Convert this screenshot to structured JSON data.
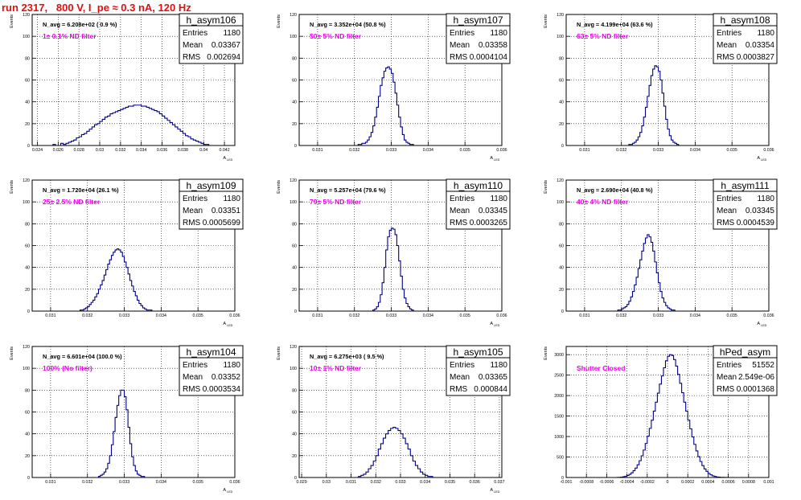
{
  "run_title": "run 2317,   800 V, I_pe ≈ 0.3 nA, 120 Hz",
  "colors": {
    "title": "#dd1010",
    "histogram": "#00008b",
    "filter_label": "#ee00ee",
    "text": "#000000"
  },
  "chart_data": [
    {
      "type": "histogram",
      "name": "h_asym106",
      "stats": {
        "entries_label": "Entries",
        "entries": "1180",
        "mean_label": "Mean",
        "mean": "0.03367",
        "rms_label": "RMS",
        "rms": "0.002694"
      },
      "annotation": "N_avg = 6.208e+02 ( 0.9 %)",
      "filter_label": "1± 0.1% ND filter",
      "xlabel": "A",
      "xlabel_sub": "LED",
      "ylabel": "Events",
      "xlim": [
        0.0235,
        0.043
      ],
      "ylim": [
        0,
        120
      ],
      "xticks": [
        0.024,
        0.026,
        0.028,
        0.03,
        0.032,
        0.034,
        0.036,
        0.038,
        0.04,
        0.042
      ],
      "xtick_labels": [
        "0.024",
        "0.026",
        "0.028",
        "0.03",
        "0.032",
        "0.034",
        "0.036",
        "0.038",
        "0.04",
        "0.042"
      ],
      "yticks": [
        0,
        20,
        40,
        60,
        80,
        100,
        120
      ],
      "grid": true,
      "bins": {
        "start": 0.0255,
        "width": 0.00025,
        "counts": [
          1,
          0,
          0,
          2,
          1,
          2,
          3,
          4,
          5,
          7,
          8,
          10,
          11,
          13,
          15,
          17,
          19,
          20,
          22,
          24,
          26,
          27,
          29,
          30,
          31,
          32,
          33,
          34,
          35,
          36,
          36,
          37,
          37,
          37,
          36,
          36,
          35,
          34,
          33,
          32,
          31,
          29,
          27,
          25,
          23,
          21,
          19,
          17,
          15,
          13,
          11,
          9,
          8,
          6,
          5,
          4,
          3,
          2,
          1,
          1,
          0,
          0,
          0,
          0,
          0
        ]
      }
    },
    {
      "type": "histogram",
      "name": "h_asym107",
      "stats": {
        "entries_label": "Entries",
        "entries": "1180",
        "mean_label": "Mean",
        "mean": "0.03358",
        "rms_label": "RMS",
        "rms": "0.0004104"
      },
      "annotation": "N_avg = 3.352e+04 (50.8 %)",
      "filter_label": "50± 5% ND filter",
      "xlabel": "A",
      "xlabel_sub": "LED",
      "ylabel": "Events",
      "xlim": [
        0.0305,
        0.036
      ],
      "ylim": [
        0,
        120
      ],
      "xticks": [
        0.031,
        0.032,
        0.033,
        0.034,
        0.035,
        0.036
      ],
      "xtick_labels": [
        "0.031",
        "0.032",
        "0.033",
        "0.034",
        "0.035",
        "0.036"
      ],
      "yticks": [
        0,
        20,
        40,
        60,
        80,
        100,
        120
      ],
      "grid": true,
      "bins": {
        "start": 0.0321,
        "width": 5e-05,
        "counts": [
          1,
          1,
          2,
          2,
          3,
          5,
          8,
          12,
          18,
          26,
          35,
          45,
          55,
          62,
          68,
          71,
          72,
          70,
          66,
          58,
          48,
          37,
          26,
          17,
          10,
          5,
          3,
          2,
          1,
          1
        ]
      }
    },
    {
      "type": "histogram",
      "name": "h_asym108",
      "stats": {
        "entries_label": "Entries",
        "entries": "1180",
        "mean_label": "Mean",
        "mean": "0.03354",
        "rms_label": "RMS",
        "rms": "0.0003827"
      },
      "annotation": "N_avg = 4.199e+04 (63.6 %)",
      "filter_label": "63± 5% ND filter",
      "xlabel": "A",
      "xlabel_sub": "LED",
      "ylabel": "Events",
      "xlim": [
        0.0305,
        0.036
      ],
      "ylim": [
        0,
        120
      ],
      "xticks": [
        0.031,
        0.032,
        0.033,
        0.034,
        0.035,
        0.036
      ],
      "xtick_labels": [
        "0.031",
        "0.032",
        "0.033",
        "0.034",
        "0.035",
        "0.036"
      ],
      "yticks": [
        0,
        20,
        40,
        60,
        80,
        100,
        120
      ],
      "grid": true,
      "bins": {
        "start": 0.0322,
        "width": 5e-05,
        "counts": [
          1,
          1,
          2,
          3,
          5,
          8,
          12,
          18,
          26,
          35,
          45,
          55,
          64,
          70,
          73,
          72,
          68,
          60,
          48,
          36,
          24,
          15,
          9,
          5,
          3,
          2,
          1
        ]
      }
    },
    {
      "type": "histogram",
      "name": "h_asym109",
      "stats": {
        "entries_label": "Entries",
        "entries": "1180",
        "mean_label": "Mean",
        "mean": "0.03351",
        "rms_label": "RMS",
        "rms": "0.0005699"
      },
      "annotation": "N_avg = 1.720e+04 (26.1 %)",
      "filter_label": "25± 2.5% ND filter",
      "xlabel": "A",
      "xlabel_sub": "LED",
      "ylabel": "Events",
      "xlim": [
        0.0305,
        0.036
      ],
      "ylim": [
        0,
        120
      ],
      "xticks": [
        0.031,
        0.032,
        0.033,
        0.034,
        0.035,
        0.036
      ],
      "xtick_labels": [
        "0.031",
        "0.032",
        "0.033",
        "0.034",
        "0.035",
        "0.036"
      ],
      "yticks": [
        0,
        20,
        40,
        60,
        80,
        100,
        120
      ],
      "grid": true,
      "bins": {
        "start": 0.0318,
        "width": 5e-05,
        "counts": [
          1,
          1,
          2,
          3,
          4,
          6,
          8,
          10,
          13,
          16,
          20,
          24,
          28,
          33,
          38,
          43,
          47,
          51,
          54,
          56,
          57,
          56,
          54,
          50,
          45,
          40,
          34,
          28,
          23,
          18,
          14,
          10,
          7,
          5,
          3,
          2,
          1,
          1,
          1
        ]
      }
    },
    {
      "type": "histogram",
      "name": "h_asym110",
      "stats": {
        "entries_label": "Entries",
        "entries": "1180",
        "mean_label": "Mean",
        "mean": "0.03345",
        "rms_label": "RMS",
        "rms": "0.0003265"
      },
      "annotation": "N_avg = 5.257e+04 (79.6 %)",
      "filter_label": "79± 5% ND filter",
      "xlabel": "A",
      "xlabel_sub": "LED",
      "ylabel": "Events",
      "xlim": [
        0.0305,
        0.036
      ],
      "ylim": [
        0,
        120
      ],
      "xticks": [
        0.031,
        0.032,
        0.033,
        0.034,
        0.035,
        0.036
      ],
      "xtick_labels": [
        "0.031",
        "0.032",
        "0.033",
        "0.034",
        "0.035",
        "0.036"
      ],
      "yticks": [
        0,
        20,
        40,
        60,
        80,
        100,
        120
      ],
      "grid": true,
      "bins": {
        "start": 0.0325,
        "width": 5e-05,
        "counts": [
          1,
          2,
          4,
          8,
          15,
          26,
          40,
          56,
          68,
          74,
          76,
          75,
          70,
          60,
          46,
          32,
          20,
          12,
          7,
          4,
          2,
          1
        ]
      }
    },
    {
      "type": "histogram",
      "name": "h_asym111",
      "stats": {
        "entries_label": "Entries",
        "entries": "1180",
        "mean_label": "Mean",
        "mean": "0.03345",
        "rms_label": "RMS",
        "rms": "0.0004539"
      },
      "annotation": "N_avg = 2.690e+04 (40.8 %)",
      "filter_label": "40± 4% ND filter",
      "xlabel": "A",
      "xlabel_sub": "LED",
      "ylabel": "Events",
      "xlim": [
        0.0305,
        0.036
      ],
      "ylim": [
        0,
        120
      ],
      "xticks": [
        0.031,
        0.032,
        0.033,
        0.034,
        0.035,
        0.036
      ],
      "xtick_labels": [
        "0.031",
        "0.032",
        "0.033",
        "0.034",
        "0.035",
        "0.036"
      ],
      "yticks": [
        0,
        20,
        40,
        60,
        80,
        100,
        120
      ],
      "grid": true,
      "bins": {
        "start": 0.0319,
        "width": 5e-05,
        "counts": [
          1,
          1,
          2,
          3,
          4,
          6,
          9,
          13,
          18,
          24,
          31,
          39,
          47,
          55,
          62,
          67,
          70,
          68,
          63,
          55,
          45,
          35,
          26,
          18,
          12,
          8,
          5,
          3,
          2,
          1,
          1
        ]
      }
    },
    {
      "type": "histogram",
      "name": "h_asym104",
      "stats": {
        "entries_label": "Entries",
        "entries": "1180",
        "mean_label": "Mean",
        "mean": "0.03352",
        "rms_label": "RMS",
        "rms": "0.0003534"
      },
      "annotation": "N_avg = 6.601e+04 (100.0 %)",
      "filter_label": "100% (No filter)",
      "xlabel": "A",
      "xlabel_sub": "LED",
      "ylabel": "Events",
      "xlim": [
        0.0305,
        0.036
      ],
      "ylim": [
        0,
        120
      ],
      "xticks": [
        0.031,
        0.032,
        0.033,
        0.034,
        0.035,
        0.036
      ],
      "xtick_labels": [
        "0.031",
        "0.032",
        "0.033",
        "0.034",
        "0.035",
        "0.036"
      ],
      "yticks": [
        0,
        20,
        40,
        60,
        80,
        100,
        120
      ],
      "grid": true,
      "bins": {
        "start": 0.0323,
        "width": 5e-05,
        "counts": [
          1,
          2,
          3,
          5,
          8,
          13,
          20,
          30,
          42,
          55,
          66,
          75,
          80,
          80,
          74,
          62,
          46,
          31,
          19,
          11,
          6,
          3,
          2,
          1,
          1
        ]
      }
    },
    {
      "type": "histogram",
      "name": "h_asym105",
      "stats": {
        "entries_label": "Entries",
        "entries": "1180",
        "mean_label": "Mean",
        "mean": "0.03365",
        "rms_label": "RMS",
        "rms": "0.000844"
      },
      "annotation": "N_avg = 6.275e+03 ( 9.5 %)",
      "filter_label": "10± 1% ND filter",
      "xlabel": "A",
      "xlabel_sub": "LED",
      "ylabel": "Events",
      "xlim": [
        0.0289,
        0.0371
      ],
      "ylim": [
        0,
        120
      ],
      "xticks": [
        0.029,
        0.03,
        0.031,
        0.032,
        0.033,
        0.034,
        0.035,
        0.036,
        0.037
      ],
      "xtick_labels": [
        "0.029",
        "0.03",
        "0.031",
        "0.032",
        "0.033",
        "0.034",
        "0.035",
        "0.036",
        "0.037"
      ],
      "yticks": [
        0,
        20,
        40,
        60,
        80,
        100,
        120
      ],
      "grid": true,
      "bins": {
        "start": 0.0313,
        "width": 0.0001,
        "counts": [
          1,
          2,
          3,
          5,
          8,
          11,
          15,
          20,
          26,
          31,
          36,
          40,
          43,
          45,
          46,
          45,
          43,
          40,
          36,
          31,
          26,
          20,
          15,
          11,
          8,
          5,
          3,
          2,
          1,
          1
        ]
      }
    },
    {
      "type": "histogram",
      "name": "hPed_asym",
      "stats": {
        "entries_label": "Entries",
        "entries": "51552",
        "mean_label": "Mean",
        "mean": "2.549e-06",
        "rms_label": "RMS",
        "rms": "0.0001368"
      },
      "annotation": "",
      "filter_label": "Shutter Closed",
      "xlabel": "",
      "xlabel_sub": "",
      "ylabel": "Events",
      "xlim": [
        -0.001,
        0.001
      ],
      "ylim": [
        0,
        3200
      ],
      "xticks": [
        -0.001,
        -0.0008,
        -0.0006,
        -0.0004,
        -0.0002,
        0,
        0.0002,
        0.0004,
        0.0006,
        0.0008,
        0.001
      ],
      "xtick_labels": [
        "-0.001",
        "-0.0008",
        "-0.0006",
        "-0.0004",
        "-0.0002",
        "0",
        "0.0002",
        "0.0004",
        "0.0006",
        "0.0008",
        "0.001"
      ],
      "yticks": [
        0,
        500,
        1000,
        1500,
        2000,
        2500,
        3000
      ],
      "grid": true,
      "bins": {
        "start": -0.0005,
        "width": 2e-05,
        "counts": [
          2,
          5,
          10,
          18,
          32,
          50,
          78,
          115,
          165,
          230,
          310,
          410,
          530,
          670,
          830,
          1010,
          1200,
          1400,
          1620,
          1840,
          2060,
          2280,
          2480,
          2680,
          2850,
          2960,
          3000,
          2980,
          2880,
          2720,
          2520,
          2300,
          2070,
          1840,
          1620,
          1400,
          1190,
          990,
          810,
          650,
          510,
          390,
          290,
          210,
          150,
          100,
          65,
          40,
          25,
          15,
          9,
          5,
          3,
          2,
          1
        ]
      }
    }
  ]
}
